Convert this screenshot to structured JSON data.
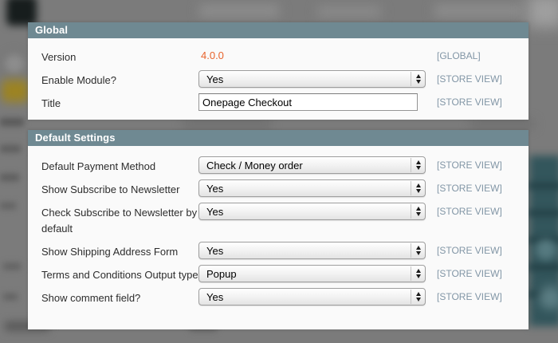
{
  "colors": {
    "section_header_bg": "#6f8992",
    "panel_bg": "#fafafa",
    "version_value_orange": "#e8632c",
    "scope_label_blue_gray": "#8296a6",
    "backdrop_gray": "#7b7b7b",
    "backdrop_teal": "#33565c"
  },
  "sections": [
    {
      "title": "Global",
      "rows": [
        {
          "label": "Version",
          "type": "static",
          "value": "4.0.0",
          "scope": "[GLOBAL]"
        },
        {
          "label": "Enable Module?",
          "type": "select",
          "value": "Yes",
          "scope": "[STORE VIEW]"
        },
        {
          "label": "Title",
          "type": "input",
          "value": "Onepage Checkout",
          "scope": "[STORE VIEW]"
        }
      ]
    },
    {
      "title": "Default Settings",
      "rows": [
        {
          "label": "Default Payment Method",
          "type": "select",
          "value": "Check / Money order",
          "scope": "[STORE VIEW]"
        },
        {
          "label": "Show Subscribe to Newsletter",
          "type": "select",
          "value": "Yes",
          "scope": "[STORE VIEW]"
        },
        {
          "label": "Check Subscribe to Newsletter by default",
          "type": "select",
          "value": "Yes",
          "scope": "[STORE VIEW]"
        },
        {
          "label": "Show Shipping Address Form",
          "type": "select",
          "value": "Yes",
          "scope": "[STORE VIEW]"
        },
        {
          "label": "Terms and Conditions Output type",
          "type": "select",
          "value": "Popup",
          "scope": "[STORE VIEW]"
        },
        {
          "label": "Show comment field?",
          "type": "select",
          "value": "Yes",
          "scope": "[STORE VIEW]"
        }
      ]
    }
  ]
}
